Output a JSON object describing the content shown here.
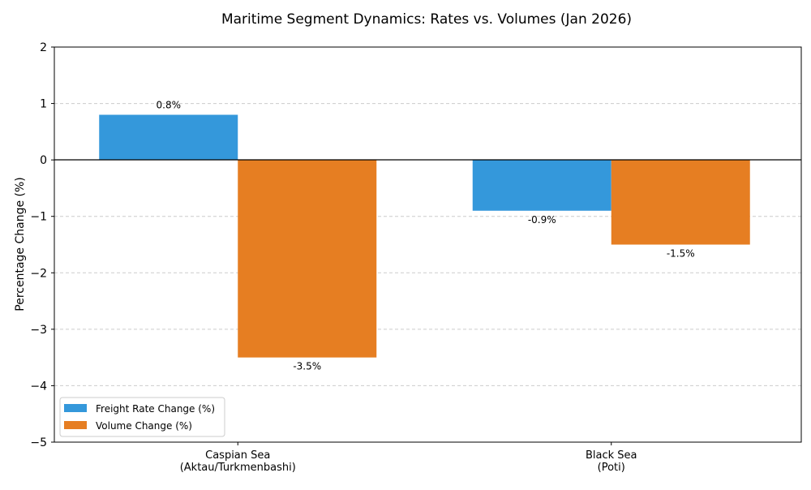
{
  "chart_data": {
    "type": "bar",
    "title": "Maritime Segment Dynamics: Rates vs. Volumes (Jan 2026)",
    "xlabel": "",
    "ylabel": "Percentage Change (%)",
    "ylim": [
      -5,
      2
    ],
    "yticks": [
      2,
      1,
      0,
      -1,
      -2,
      -3,
      -4,
      -5
    ],
    "ytick_labels": [
      "2",
      "1",
      "0",
      "−1",
      "−2",
      "−3",
      "−4",
      "−5"
    ],
    "categories": [
      [
        "Caspian Sea",
        "(Aktau/Turkmenbashi)"
      ],
      [
        "Black Sea",
        "(Poti)"
      ]
    ],
    "series": [
      {
        "name": "Freight Rate Change (%)",
        "values": [
          0.8,
          -0.9
        ],
        "labels": [
          "0.8%",
          "-0.9%"
        ],
        "color": "#3498db"
      },
      {
        "name": "Volume Change (%)",
        "values": [
          -3.5,
          -1.5
        ],
        "labels": [
          "-3.5%",
          "-1.5%"
        ],
        "color": "#e67e22"
      }
    ],
    "grid": "horizontal dashed",
    "zero_line": true,
    "legend_position": "lower-left"
  }
}
